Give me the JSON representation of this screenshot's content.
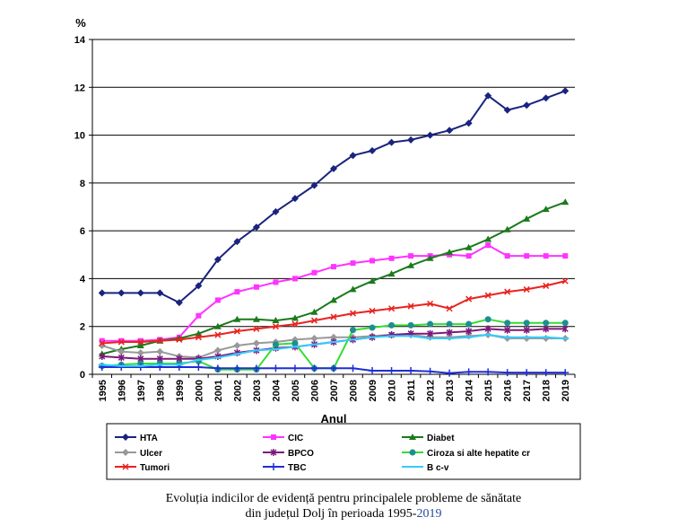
{
  "chart_data": {
    "type": "line",
    "ylabel": "%",
    "xlabel": "Anul",
    "ylim": [
      0,
      14
    ],
    "yticks": [
      0,
      2,
      4,
      6,
      8,
      10,
      12,
      14
    ],
    "grid": "horizontal",
    "legend_position": "bottom",
    "x": [
      "1995",
      "1996",
      "1997",
      "1998",
      "1999",
      "2000",
      "2001",
      "2002",
      "2003",
      "2004",
      "2005",
      "2006",
      "2007",
      "2008",
      "2009",
      "2010",
      "2011",
      "2012",
      "2013",
      "2014",
      "2015",
      "2016",
      "2017",
      "2018",
      "2019"
    ],
    "series": [
      {
        "name": "HTA",
        "color": "#1a237e",
        "marker": "diamond",
        "values": [
          3.4,
          3.4,
          3.4,
          3.4,
          3.0,
          3.7,
          4.8,
          5.55,
          6.15,
          6.8,
          7.35,
          7.9,
          8.6,
          9.15,
          9.35,
          9.7,
          9.8,
          10.0,
          10.2,
          10.5,
          11.65,
          11.05,
          11.25,
          11.55,
          11.85
        ]
      },
      {
        "name": "CIC",
        "color": "#ff33ff",
        "marker": "square",
        "values": [
          1.4,
          1.4,
          1.4,
          1.45,
          1.55,
          2.45,
          3.1,
          3.45,
          3.65,
          3.85,
          4.0,
          4.25,
          4.5,
          4.65,
          4.75,
          4.85,
          4.95,
          4.95,
          5.0,
          4.95,
          5.4,
          4.95,
          4.95,
          4.95,
          4.95
        ]
      },
      {
        "name": "Diabet",
        "color": "#1b7a1b",
        "marker": "triangle",
        "values": [
          0.85,
          1.05,
          1.2,
          1.4,
          1.5,
          1.7,
          2.0,
          2.3,
          2.3,
          2.25,
          2.35,
          2.6,
          3.1,
          3.55,
          3.9,
          4.2,
          4.55,
          4.85,
          5.1,
          5.3,
          5.65,
          6.05,
          6.5,
          6.9,
          7.2
        ]
      },
      {
        "name": "Ulcer",
        "color": "#999999",
        "marker": "diamond",
        "values": [
          1.2,
          0.95,
          0.9,
          0.95,
          0.75,
          0.7,
          1.0,
          1.2,
          1.3,
          1.35,
          1.45,
          1.5,
          1.55,
          1.55,
          1.6,
          1.65,
          1.65,
          1.55,
          1.55,
          1.6,
          1.65,
          1.5,
          1.5,
          1.5,
          1.5
        ]
      },
      {
        "name": "BPCO",
        "color": "#7b1a7b",
        "marker": "star",
        "values": [
          0.75,
          0.7,
          0.65,
          0.65,
          0.65,
          0.65,
          0.75,
          0.9,
          1.0,
          1.1,
          1.15,
          1.25,
          1.35,
          1.45,
          1.55,
          1.65,
          1.7,
          1.7,
          1.75,
          1.8,
          1.9,
          1.85,
          1.85,
          1.9,
          1.9
        ]
      },
      {
        "name": "Ciroza si alte hepatite cr",
        "color": "#1e8f8f",
        "line_color": "#33dd33",
        "marker": "circle",
        "values": [
          0.35,
          0.4,
          0.45,
          0.45,
          0.45,
          0.55,
          0.2,
          0.2,
          0.2,
          1.25,
          1.3,
          0.25,
          0.25,
          1.85,
          1.95,
          2.05,
          2.05,
          2.1,
          2.1,
          2.1,
          2.3,
          2.15,
          2.15,
          2.15,
          2.15
        ]
      },
      {
        "name": "Tumori",
        "color": "#e8231f",
        "marker": "x",
        "values": [
          1.3,
          1.35,
          1.35,
          1.4,
          1.45,
          1.55,
          1.65,
          1.8,
          1.9,
          2.0,
          2.1,
          2.25,
          2.4,
          2.55,
          2.65,
          2.75,
          2.85,
          2.95,
          2.75,
          3.15,
          3.3,
          3.45,
          3.55,
          3.7,
          3.9
        ]
      },
      {
        "name": "TBC",
        "color": "#1f2ed6",
        "marker": "plus",
        "values": [
          0.3,
          0.3,
          0.3,
          0.3,
          0.3,
          0.3,
          0.25,
          0.25,
          0.25,
          0.25,
          0.25,
          0.25,
          0.25,
          0.25,
          0.15,
          0.15,
          0.15,
          0.12,
          0.05,
          0.1,
          0.1,
          0.07,
          0.07,
          0.07,
          0.07
        ]
      },
      {
        "name": "B c-v",
        "color": "#33ccff",
        "marker": "dash",
        "values": [
          0.4,
          0.35,
          0.35,
          0.4,
          0.4,
          0.6,
          0.7,
          0.85,
          1.0,
          1.05,
          1.15,
          1.25,
          1.35,
          1.45,
          1.55,
          1.6,
          1.6,
          1.5,
          1.5,
          1.55,
          1.65,
          1.55,
          1.55,
          1.55,
          1.5
        ]
      }
    ]
  },
  "caption": {
    "line1": "Evoluția indicilor de evidență pentru principalele probleme de sănătate",
    "line2_prefix": "din județul Dolj în perioada 1995-",
    "line2_year": "2019"
  }
}
